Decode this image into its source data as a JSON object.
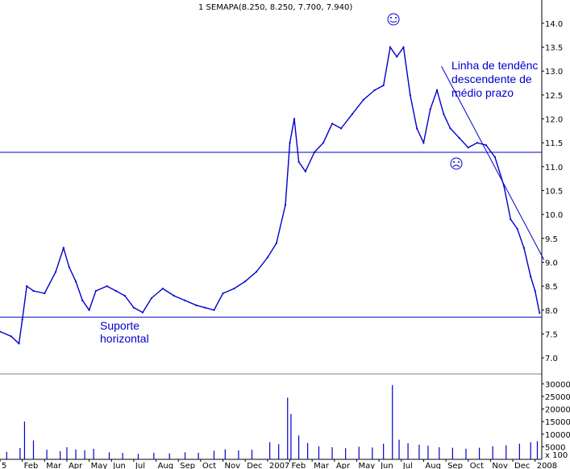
{
  "chart_data": {
    "type": "line",
    "title": "1 SEMAPA(8.250, 8.250, 7.700, 7.940)",
    "price_axis": {
      "ylim": [
        6.9,
        14.15
      ],
      "ticks": [
        "14.0",
        "13.5",
        "13.0",
        "12.5",
        "12.0",
        "11.5",
        "11.0",
        "10.5",
        "10.0",
        "9.5",
        "9.0",
        "8.5",
        "8.0",
        "7.5",
        "7.0"
      ]
    },
    "volume_axis": {
      "ylim": [
        0,
        32000
      ],
      "ticks": [
        "30000",
        "25000",
        "20000",
        "15000",
        "10000",
        "5000"
      ],
      "unit_label": "x 100"
    },
    "x_axis": {
      "range": [
        0,
        24.3
      ],
      "tick_labels": [
        "5",
        "Feb",
        "Mar",
        "Apr",
        "May",
        "Jun",
        "Jul",
        "Aug",
        "Sep",
        "Oct",
        "Nov",
        "Dec",
        "2007",
        "Feb",
        "Mar",
        "Apr",
        "May",
        "Jun",
        "Jul",
        "Aug",
        "Sep",
        "Oct",
        "Nov",
        "Dec",
        "2008"
      ],
      "tick_positions": [
        0,
        1,
        2,
        3,
        4,
        5,
        6,
        7,
        8,
        9,
        10,
        11,
        12,
        13,
        14,
        15,
        16,
        17,
        18,
        19,
        20,
        21,
        22,
        23,
        24
      ]
    },
    "series": [
      {
        "values": [
          [
            0,
            7.55
          ],
          [
            0.5,
            7.45
          ],
          [
            0.85,
            7.3
          ],
          [
            1.0,
            7.8
          ],
          [
            1.2,
            8.5
          ],
          [
            1.5,
            8.4
          ],
          [
            2.0,
            8.35
          ],
          [
            2.5,
            8.8
          ],
          [
            2.85,
            9.3
          ],
          [
            3.1,
            8.9
          ],
          [
            3.4,
            8.6
          ],
          [
            3.7,
            8.2
          ],
          [
            4.0,
            8.0
          ],
          [
            4.3,
            8.4
          ],
          [
            4.8,
            8.5
          ],
          [
            5.2,
            8.4
          ],
          [
            5.6,
            8.3
          ],
          [
            6.0,
            8.05
          ],
          [
            6.4,
            7.95
          ],
          [
            6.8,
            8.25
          ],
          [
            7.3,
            8.45
          ],
          [
            7.8,
            8.3
          ],
          [
            8.3,
            8.2
          ],
          [
            8.8,
            8.1
          ],
          [
            9.2,
            8.05
          ],
          [
            9.6,
            8.0
          ],
          [
            10.0,
            8.35
          ],
          [
            10.5,
            8.45
          ],
          [
            11.0,
            8.6
          ],
          [
            11.5,
            8.8
          ],
          [
            12.0,
            9.1
          ],
          [
            12.4,
            9.4
          ],
          [
            12.8,
            10.2
          ],
          [
            13.0,
            11.5
          ],
          [
            13.2,
            12.0
          ],
          [
            13.4,
            11.1
          ],
          [
            13.7,
            10.9
          ],
          [
            14.1,
            11.3
          ],
          [
            14.5,
            11.5
          ],
          [
            14.9,
            11.9
          ],
          [
            15.3,
            11.8
          ],
          [
            15.8,
            12.1
          ],
          [
            16.3,
            12.4
          ],
          [
            16.8,
            12.6
          ],
          [
            17.2,
            12.7
          ],
          [
            17.5,
            13.5
          ],
          [
            17.8,
            13.3
          ],
          [
            18.1,
            13.5
          ],
          [
            18.4,
            12.5
          ],
          [
            18.7,
            11.8
          ],
          [
            19.0,
            11.5
          ],
          [
            19.3,
            12.2
          ],
          [
            19.6,
            12.6
          ],
          [
            19.9,
            12.1
          ],
          [
            20.2,
            11.8
          ],
          [
            20.6,
            11.6
          ],
          [
            21.0,
            11.4
          ],
          [
            21.4,
            11.5
          ],
          [
            21.8,
            11.45
          ],
          [
            22.2,
            11.2
          ],
          [
            22.6,
            10.6
          ],
          [
            22.9,
            9.9
          ],
          [
            23.2,
            9.7
          ],
          [
            23.5,
            9.3
          ],
          [
            23.8,
            8.7
          ],
          [
            24.0,
            8.4
          ],
          [
            24.2,
            7.94
          ]
        ]
      }
    ],
    "volume": [
      [
        0.3,
        3000
      ],
      [
        0.9,
        4500
      ],
      [
        1.1,
        15000
      ],
      [
        1.5,
        7500
      ],
      [
        2.1,
        3800
      ],
      [
        2.7,
        3200
      ],
      [
        3.0,
        4800
      ],
      [
        3.4,
        3900
      ],
      [
        3.8,
        3600
      ],
      [
        4.2,
        4200
      ],
      [
        4.9,
        2800
      ],
      [
        5.5,
        2500
      ],
      [
        6.2,
        2200
      ],
      [
        6.9,
        2600
      ],
      [
        7.6,
        2400
      ],
      [
        8.3,
        2800
      ],
      [
        8.9,
        2600
      ],
      [
        9.6,
        3400
      ],
      [
        10.1,
        4000
      ],
      [
        10.7,
        3500
      ],
      [
        11.3,
        3800
      ],
      [
        12.1,
        6800
      ],
      [
        12.5,
        6000
      ],
      [
        12.9,
        24500
      ],
      [
        13.05,
        18000
      ],
      [
        13.4,
        9500
      ],
      [
        13.8,
        6500
      ],
      [
        14.3,
        5200
      ],
      [
        14.9,
        4800
      ],
      [
        15.5,
        4400
      ],
      [
        16.1,
        5000
      ],
      [
        16.7,
        4700
      ],
      [
        17.2,
        6200
      ],
      [
        17.6,
        29500
      ],
      [
        17.9,
        7800
      ],
      [
        18.3,
        6400
      ],
      [
        18.8,
        5800
      ],
      [
        19.2,
        5400
      ],
      [
        19.7,
        4800
      ],
      [
        20.3,
        4600
      ],
      [
        20.9,
        4200
      ],
      [
        21.5,
        4600
      ],
      [
        22.1,
        5200
      ],
      [
        22.7,
        5600
      ],
      [
        23.3,
        6200
      ],
      [
        23.8,
        6800
      ],
      [
        24.1,
        7200
      ]
    ],
    "annotations": {
      "resistance": "Linha de tendênc descendente de médio prazo",
      "support": "Suporte horizontal",
      "horizontal_levels": [
        11.3,
        7.85
      ],
      "trend_line": [
        [
          19.8,
          13.1
        ],
        [
          24.4,
          9.05
        ]
      ]
    },
    "colors": {
      "series": "#0000cc",
      "lines": "#0000cc",
      "axis": "#000000"
    },
    "grid": false,
    "legend": "none"
  },
  "labels": {
    "resistance_line1": "Linha de tendênc",
    "resistance_line2": "descendente de",
    "resistance_line3": "médio prazo",
    "support_line1": "Suporte",
    "support_line2": "horizontal"
  }
}
